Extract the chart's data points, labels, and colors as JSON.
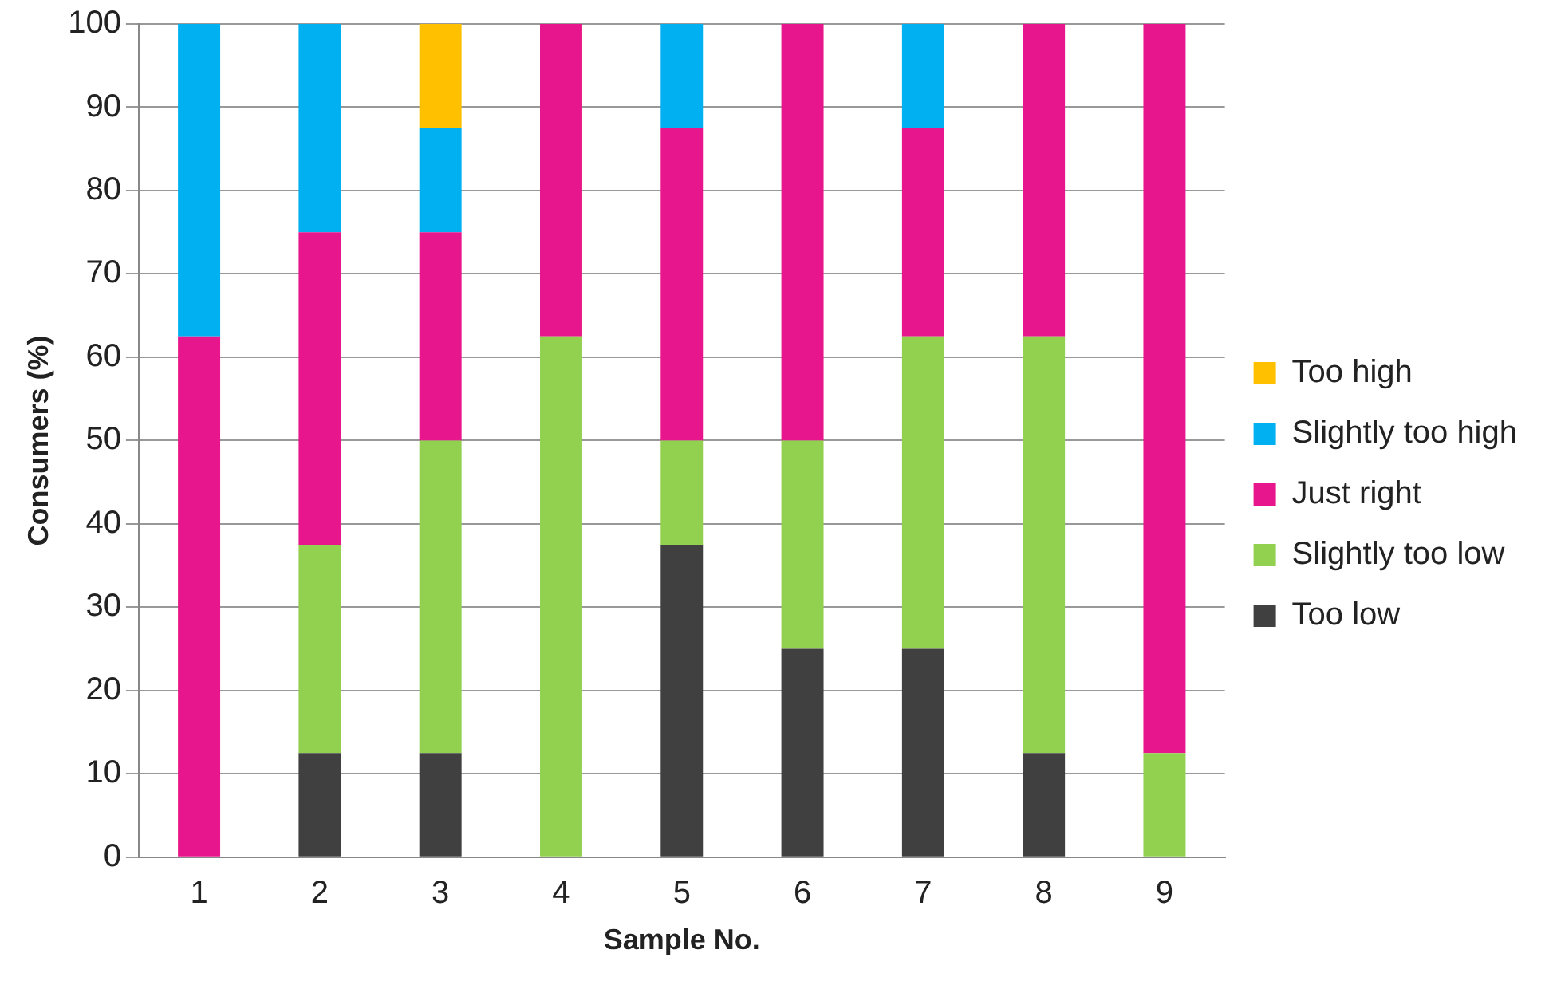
{
  "chart_data": {
    "type": "bar",
    "stacked": true,
    "xlabel": "Sample No.",
    "ylabel": "Consumers (%)",
    "categories": [
      "1",
      "2",
      "3",
      "4",
      "5",
      "6",
      "7",
      "8",
      "9"
    ],
    "series": [
      {
        "name": "Too low",
        "color": "#404040",
        "values": [
          0,
          12.5,
          12.5,
          0,
          37.5,
          25,
          25,
          12.5,
          0
        ]
      },
      {
        "name": "Slightly too low",
        "color": "#92d050",
        "values": [
          0,
          25,
          37.5,
          62.5,
          12.5,
          25,
          37.5,
          50,
          12.5
        ]
      },
      {
        "name": "Just right",
        "color": "#e8168c",
        "values": [
          62.5,
          37.5,
          25,
          37.5,
          37.5,
          50,
          25,
          37.5,
          87.5
        ]
      },
      {
        "name": "Slightly too high",
        "color": "#00b0f0",
        "values": [
          37.5,
          25,
          12.5,
          0,
          12.5,
          0,
          12.5,
          0,
          0
        ]
      },
      {
        "name": "Too high",
        "color": "#ffc000",
        "values": [
          0,
          0,
          12.5,
          0,
          0,
          0,
          0,
          0,
          0
        ]
      }
    ],
    "ylim": [
      0,
      100
    ],
    "yticks": [
      0,
      10,
      20,
      30,
      40,
      50,
      60,
      70,
      80,
      90,
      100
    ],
    "grid": "y",
    "legend": "right"
  }
}
